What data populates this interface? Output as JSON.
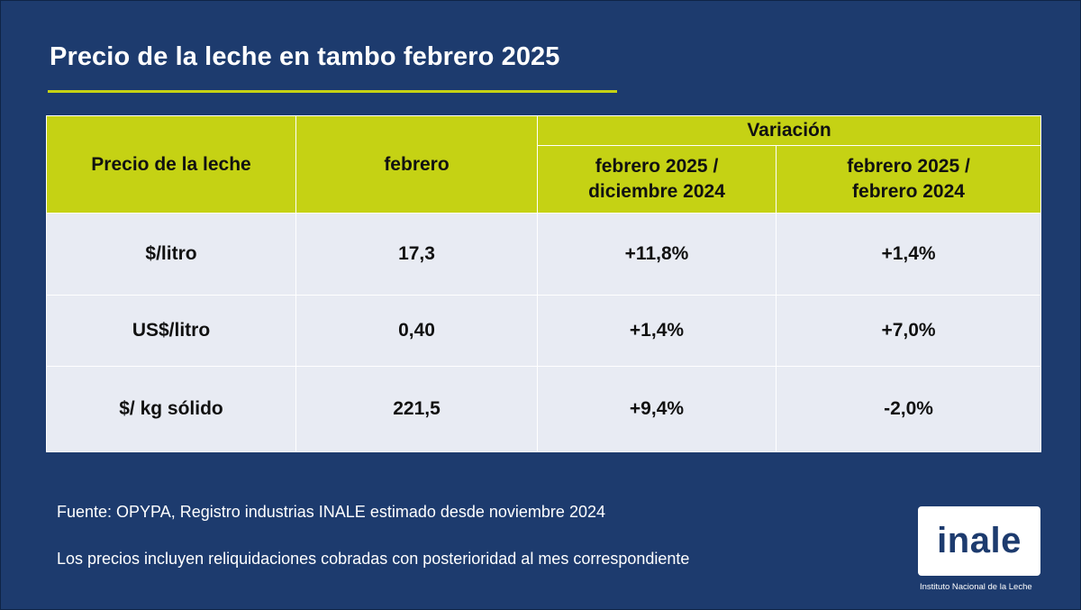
{
  "title": "Precio de la leche en tambo febrero 2025",
  "colors": {
    "background": "#1d3b6e",
    "header": "#c5d214",
    "row": "#e8ebf3",
    "accent_rule": "#c5d214"
  },
  "table": {
    "col_label": "Precio de la leche",
    "col_month": "febrero",
    "group_label": "Variación",
    "col_var1_line1": "febrero 2025 /",
    "col_var1_line2": "diciembre 2024",
    "col_var2_line1": "febrero 2025 /",
    "col_var2_line2": "febrero 2024",
    "rows": [
      {
        "label": "$/litro",
        "value": "17,3",
        "var1": "+11,8%",
        "var2": "+1,4%"
      },
      {
        "label": "US$/litro",
        "value": "0,40",
        "var1": "+1,4%",
        "var2": "+7,0%"
      },
      {
        "label": "$/ kg sólido",
        "value": "221,5",
        "var1": "+9,4%",
        "var2": "-2,0%"
      }
    ]
  },
  "source_note": "Fuente: OPYPA, Registro industrias INALE estimado desde noviembre 2024",
  "price_note": "Los precios incluyen reliquidaciones cobradas con posterioridad al mes correspondiente",
  "logo": {
    "wordmark": "inale",
    "caption": "Instituto Nacional de la Leche"
  }
}
